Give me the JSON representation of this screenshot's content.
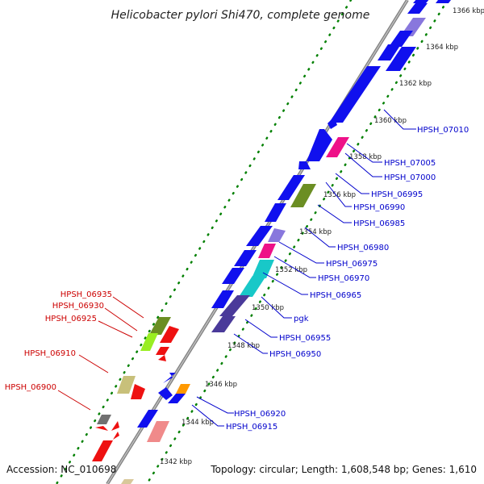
{
  "title": "Helicobacter pylori Shi470, complete genome",
  "footer": {
    "accession": "Accession: NC_010698",
    "topology": "Topology: circular; Length: 1,608,548 bp; Genes: 1,610"
  },
  "colors": {
    "forward_label": "#0000cc",
    "reverse_label": "#cc0000",
    "backbone": "#808080",
    "ticks": "#008000"
  },
  "tick_labels": [
    "1366 kbp",
    "1364 kbp",
    "1362 kbp",
    "1360 kbp",
    "1358 kbp",
    "1356 kbp",
    "1354 kbp",
    "1352 kbp",
    "1350 kbp",
    "1348 kbp",
    "1346 kbp",
    "1344 kbp",
    "1342 kbp"
  ],
  "forward_genes": [
    "HPSH_07010",
    "HPSH_07005",
    "HPSH_07000",
    "HPSH_06995",
    "HPSH_06990",
    "HPSH_06985",
    "HPSH_06980",
    "HPSH_06975",
    "HPSH_06970",
    "HPSH_06965",
    "pgk",
    "HPSH_06955",
    "HPSH_06950",
    "HPSH_06920",
    "HPSH_06915"
  ],
  "reverse_genes": [
    "HPSH_06935",
    "HPSH_06930",
    "HPSH_06925",
    "HPSH_06910",
    "HPSH_06900"
  ]
}
